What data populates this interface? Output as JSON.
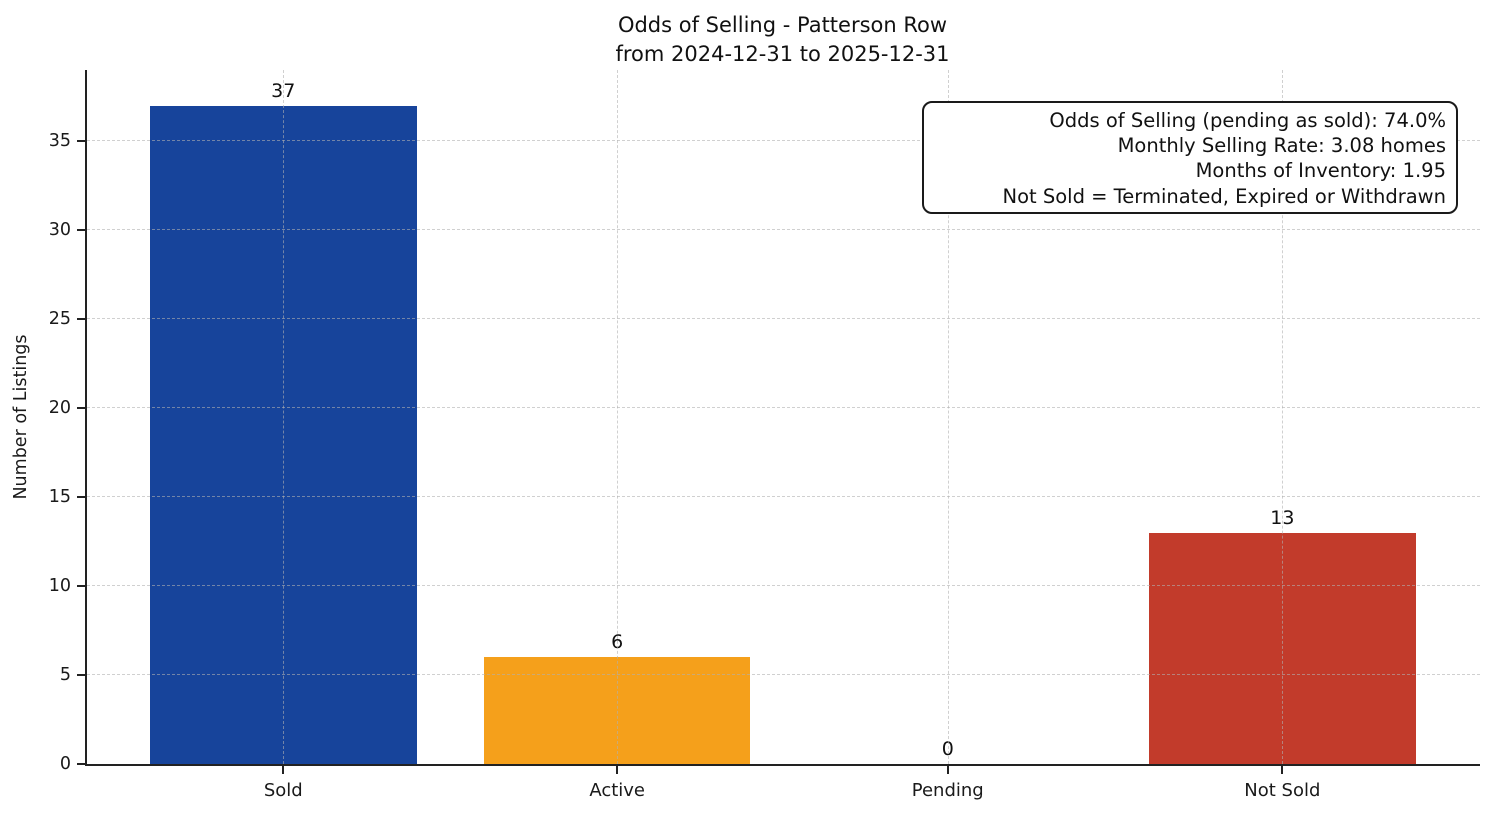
{
  "chart_data": {
    "type": "bar",
    "title": "Odds of Selling - Patterson Row",
    "subtitle": "from 2024-12-31 to 2025-12-31",
    "xlabel": "",
    "ylabel": "Number of Listings",
    "categories": [
      "Sold",
      "Active",
      "Pending",
      "Not Sold"
    ],
    "values": [
      37,
      6,
      0,
      13
    ],
    "bar_colors": [
      "#17449B",
      "#F5A01B",
      null,
      "#C23B2B"
    ],
    "yticks": [
      0,
      5,
      10,
      15,
      20,
      25,
      30,
      35
    ],
    "ylim": [
      0,
      39
    ],
    "grid": true,
    "legend": false,
    "annotation_box": {
      "lines": [
        "Odds of Selling (pending as sold): 74.0%",
        "Monthly Selling Rate: 3.08 homes",
        "Months of Inventory: 1.95",
        "Not Sold = Terminated, Expired or Withdrawn"
      ]
    },
    "colors": {
      "axis": "#222222",
      "grid": "#cfcfcf",
      "text": "#1a1a1a"
    }
  }
}
